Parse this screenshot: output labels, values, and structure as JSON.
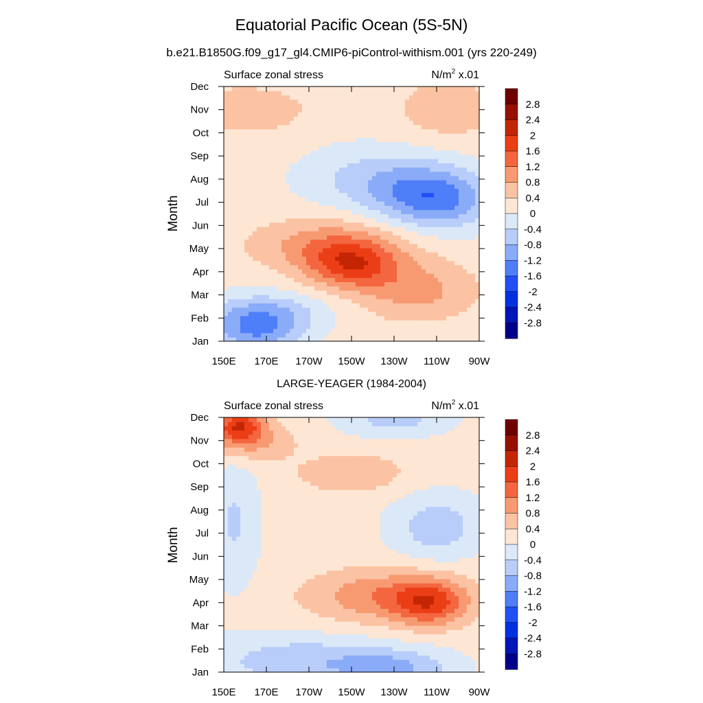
{
  "figure": {
    "title": "Equatorial Pacific Ocean (5S-5N)",
    "subtitle": "b.e21.B1850G.f09_g17_gl4.CMIP6-piControl-withism.001 (yrs 220-249)"
  },
  "chart_data": [
    {
      "type": "heatmap",
      "panel_title": "",
      "left_label": "Surface zonal stress",
      "right_label_base": "N/m",
      "right_label_sup": "2",
      "right_label_tail": " x.01",
      "ylabel": "Month",
      "x_ticks": [
        "150E",
        "170E",
        "170W",
        "150W",
        "130W",
        "110W",
        "90W"
      ],
      "y_ticks": [
        "Jan",
        "Feb",
        "Mar",
        "Apr",
        "May",
        "Jun",
        "Jul",
        "Aug",
        "Sep",
        "Oct",
        "Nov",
        "Dec"
      ],
      "x_range_deg_east": [
        150,
        270
      ],
      "features": [
        {
          "value": -1.2,
          "lon": 165,
          "month": 1.4,
          "spread_lon": 15,
          "spread_month": 0.7
        },
        {
          "value": -0.8,
          "lon": 170,
          "month": 2.3,
          "spread_lon": 20,
          "spread_month": 0.6
        },
        {
          "value": 0.9,
          "lon": 200,
          "month": 5.2,
          "spread_lon": 25,
          "spread_month": 0.8
        },
        {
          "value": 1.4,
          "lon": 210,
          "month": 4.3,
          "spread_lon": 15,
          "spread_month": 0.7
        },
        {
          "value": 0.8,
          "lon": 240,
          "month": 3.2,
          "spread_lon": 20,
          "spread_month": 0.9
        },
        {
          "value": -1.4,
          "lon": 250,
          "month": 7.1,
          "spread_lon": 18,
          "spread_month": 0.9
        },
        {
          "value": -0.8,
          "lon": 225,
          "month": 8.0,
          "spread_lon": 25,
          "spread_month": 1.0
        },
        {
          "value": 0.6,
          "lon": 160,
          "month": 11.0,
          "spread_lon": 20,
          "spread_month": 0.7
        },
        {
          "value": 0.5,
          "lon": 255,
          "month": 11.0,
          "spread_lon": 18,
          "spread_month": 1.0
        }
      ]
    },
    {
      "type": "heatmap",
      "panel_title": "LARGE-YEAGER (1984-2004)",
      "left_label": "Surface zonal stress",
      "right_label_base": "N/m",
      "right_label_sup": "2",
      "right_label_tail": " x.01",
      "ylabel": "Month",
      "x_ticks": [
        "150E",
        "170E",
        "170W",
        "150W",
        "130W",
        "110W",
        "90W"
      ],
      "y_ticks": [
        "Jan",
        "Feb",
        "Mar",
        "Apr",
        "May",
        "Jun",
        "Jul",
        "Aug",
        "Sep",
        "Oct",
        "Nov",
        "Dec"
      ],
      "x_range_deg_east": [
        150,
        270
      ],
      "features": [
        {
          "value": 1.6,
          "lon": 157,
          "month": 11.7,
          "spread_lon": 8,
          "spread_month": 0.5
        },
        {
          "value": 0.8,
          "lon": 162,
          "month": 11.0,
          "spread_lon": 14,
          "spread_month": 0.6
        },
        {
          "value": 0.6,
          "lon": 210,
          "month": 9.6,
          "spread_lon": 18,
          "spread_month": 0.6
        },
        {
          "value": 1.0,
          "lon": 225,
          "month": 4.3,
          "spread_lon": 25,
          "spread_month": 0.8
        },
        {
          "value": 1.3,
          "lon": 247,
          "month": 4.0,
          "spread_lon": 12,
          "spread_month": 0.7
        },
        {
          "value": -0.8,
          "lon": 185,
          "month": 1.5,
          "spread_lon": 30,
          "spread_month": 0.8
        },
        {
          "value": -0.9,
          "lon": 230,
          "month": 1.2,
          "spread_lon": 20,
          "spread_month": 0.6
        },
        {
          "value": -0.8,
          "lon": 250,
          "month": 7.3,
          "spread_lon": 15,
          "spread_month": 1.0
        },
        {
          "value": -0.7,
          "lon": 230,
          "month": 11.9,
          "spread_lon": 18,
          "spread_month": 0.5
        },
        {
          "value": -0.6,
          "lon": 155,
          "month": 7.5,
          "spread_lon": 8,
          "spread_month": 2.0
        }
      ]
    }
  ],
  "colorbar": {
    "labels": [
      "2.8",
      "2.4",
      "2",
      "1.6",
      "1.2",
      "0.8",
      "0.4",
      "0",
      "-0.4",
      "-0.8",
      "-1.2",
      "-1.6",
      "-2",
      "-2.4",
      "-2.8"
    ],
    "levels": [
      -2.8,
      -2.4,
      -2.0,
      -1.6,
      -1.2,
      -0.8,
      -0.4,
      0,
      0.4,
      0.8,
      1.2,
      1.6,
      2.0,
      2.4,
      2.8
    ],
    "colors": [
      "#00008b",
      "#0016b4",
      "#0030e0",
      "#1f4ff5",
      "#4f7ef9",
      "#8aabf7",
      "#b8cdf9",
      "#dbe8f8",
      "#fde6d4",
      "#fbc3a3",
      "#f79a72",
      "#f4663f",
      "#ec3e16",
      "#c42605",
      "#951000",
      "#6f0000"
    ]
  }
}
